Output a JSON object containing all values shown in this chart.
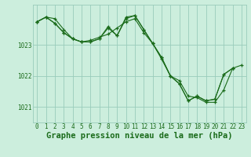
{
  "background_color": "#cceedd",
  "grid_color": "#99ccbb",
  "line_color": "#1a6b1a",
  "marker_color": "#1a6b1a",
  "xlabel": "Graphe pression niveau de la mer (hPa)",
  "ylim": [
    1020.5,
    1024.3
  ],
  "xlim": [
    -0.5,
    23.5
  ],
  "yticks": [
    1021,
    1022,
    1023
  ],
  "xticks": [
    0,
    1,
    2,
    3,
    4,
    5,
    6,
    7,
    8,
    9,
    10,
    11,
    12,
    13,
    14,
    15,
    16,
    17,
    18,
    19,
    20,
    21,
    22,
    23
  ],
  "series": [
    [
      1023.75,
      1023.9,
      1023.85,
      1023.5,
      1023.2,
      1023.1,
      1023.15,
      1023.25,
      1023.35,
      1023.55,
      1023.75,
      1023.85,
      1023.4,
      1023.05,
      1022.55,
      1022.0,
      1021.85,
      1021.35,
      1021.3,
      1021.15,
      1021.15,
      1021.55,
      1022.25,
      1022.35
    ],
    [
      1023.75,
      1023.9,
      1023.7,
      1023.4,
      1023.2,
      1023.1,
      1023.1,
      1023.2,
      1023.6,
      1023.3,
      1023.9,
      1023.95,
      1023.5,
      1023.05,
      1022.6,
      1022.0,
      1021.75,
      1021.2,
      1021.35,
      1021.2,
      1021.25,
      1022.05,
      1022.25,
      null
    ],
    [
      1023.75,
      1023.9,
      1023.7,
      1023.4,
      1023.2,
      1023.1,
      1023.1,
      1023.2,
      1023.55,
      1023.3,
      1023.85,
      1023.95,
      1023.5,
      1023.05,
      1022.6,
      1022.0,
      1021.75,
      1021.2,
      1021.35,
      1021.2,
      1021.25,
      1022.05,
      1022.25,
      null
    ]
  ],
  "tick_fontsize": 5.5,
  "tick_color": "#1a6b1a",
  "label_fontsize": 7.5,
  "label_fontweight": "bold",
  "linewidth": 0.8,
  "markersize": 3.0,
  "markeredgewidth": 0.9
}
